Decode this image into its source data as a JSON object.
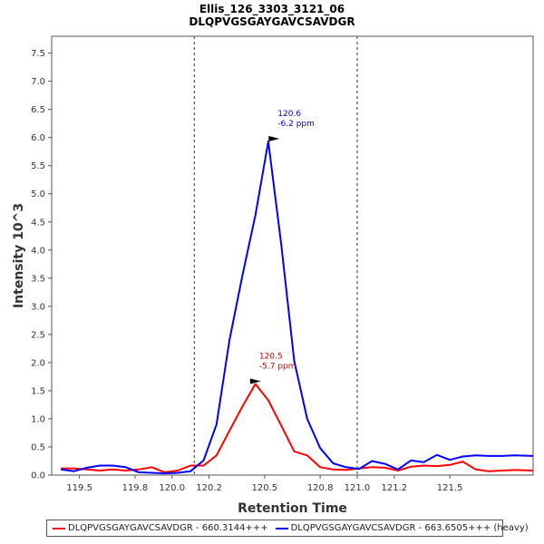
{
  "chart_data": {
    "type": "line",
    "title": "Ellis_126_3303_3121_06",
    "subtitle": "DLQPVGSGAYGAVCSAVDGR",
    "xlabel": "Retention Time",
    "ylabel": "Intensity 10^3",
    "xlim": [
      119.35,
      121.95
    ],
    "ylim": [
      0,
      7.8
    ],
    "xticks": [
      119.5,
      119.8,
      120.0,
      120.2,
      120.5,
      120.8,
      121.0,
      121.2,
      121.5
    ],
    "xtick_labels": [
      "119.5",
      "119.8",
      "120.0",
      "120.2",
      "120.5",
      "120.8",
      "121.0",
      "121.2",
      "121.5"
    ],
    "yticks": [
      0,
      0.5,
      1.0,
      1.5,
      2.0,
      2.5,
      3.0,
      3.5,
      4.0,
      4.5,
      5.0,
      5.5,
      6.0,
      6.5,
      7.0,
      7.5
    ],
    "ytick_labels": [
      "0.0",
      "0.5",
      "1.0",
      "1.5",
      "2.0",
      "2.5",
      "3.0",
      "3.5",
      "4.0",
      "4.5",
      "5.0",
      "5.5",
      "6.0",
      "6.5",
      "7.0",
      "7.5"
    ],
    "vlines": [
      120.12,
      121.0
    ],
    "series": [
      {
        "name": "DLQPVGSGAYGAVCSAVDGR - 660.3144+++",
        "color": "#ff0000",
        "x": [
          119.4,
          119.47,
          119.54,
          119.61,
          119.68,
          119.75,
          119.82,
          119.89,
          119.96,
          120.03,
          120.1,
          120.17,
          120.24,
          120.31,
          120.38,
          120.45,
          120.52,
          120.59,
          120.66,
          120.73,
          120.8,
          120.87,
          120.94,
          121.01,
          121.08,
          121.15,
          121.22,
          121.29,
          121.36,
          121.43,
          121.5,
          121.57,
          121.64,
          121.71,
          121.78,
          121.85,
          121.95
        ],
        "y": [
          0.12,
          0.12,
          0.1,
          0.08,
          0.1,
          0.08,
          0.1,
          0.14,
          0.05,
          0.08,
          0.17,
          0.17,
          0.35,
          0.79,
          1.22,
          1.62,
          1.33,
          0.88,
          0.42,
          0.35,
          0.14,
          0.1,
          0.09,
          0.12,
          0.14,
          0.13,
          0.08,
          0.15,
          0.17,
          0.16,
          0.18,
          0.24,
          0.1,
          0.07,
          0.08,
          0.09,
          0.08
        ]
      },
      {
        "name": "DLQPVGSGAYGAVCSAVDGR - 663.6505+++ (heavy)",
        "color": "#0000ff",
        "x": [
          119.4,
          119.47,
          119.54,
          119.61,
          119.68,
          119.75,
          119.82,
          119.89,
          119.96,
          120.03,
          120.1,
          120.17,
          120.24,
          120.31,
          120.38,
          120.45,
          120.52,
          120.59,
          120.66,
          120.73,
          120.8,
          120.87,
          120.94,
          121.01,
          121.08,
          121.15,
          121.22,
          121.29,
          121.36,
          121.43,
          121.5,
          121.57,
          121.64,
          121.71,
          121.78,
          121.85,
          121.95
        ],
        "y": [
          0.1,
          0.07,
          0.13,
          0.17,
          0.17,
          0.14,
          0.05,
          0.04,
          0.03,
          0.04,
          0.07,
          0.26,
          0.9,
          2.4,
          3.55,
          4.62,
          5.93,
          4.1,
          2.03,
          1.0,
          0.48,
          0.21,
          0.14,
          0.11,
          0.25,
          0.2,
          0.1,
          0.26,
          0.23,
          0.36,
          0.27,
          0.33,
          0.35,
          0.34,
          0.34,
          0.35,
          0.34
        ]
      }
    ],
    "annotations": [
      {
        "x": 120.6,
        "y": 5.93,
        "lines": [
          "120.6",
          "-6.2 ppm"
        ],
        "color": "#0000cc"
      },
      {
        "x": 120.5,
        "y": 1.62,
        "lines": [
          "120.5",
          "-5.7 ppm"
        ],
        "color": "#cc0000"
      }
    ]
  },
  "legend": {
    "items": [
      {
        "label": "DLQPVGSGAYGAVCSAVDGR - 660.3144+++",
        "color": "#ff0000"
      },
      {
        "label": "DLQPVGSGAYGAVCSAVDGR - 663.6505+++ (heavy)",
        "color": "#0000ff"
      }
    ]
  }
}
